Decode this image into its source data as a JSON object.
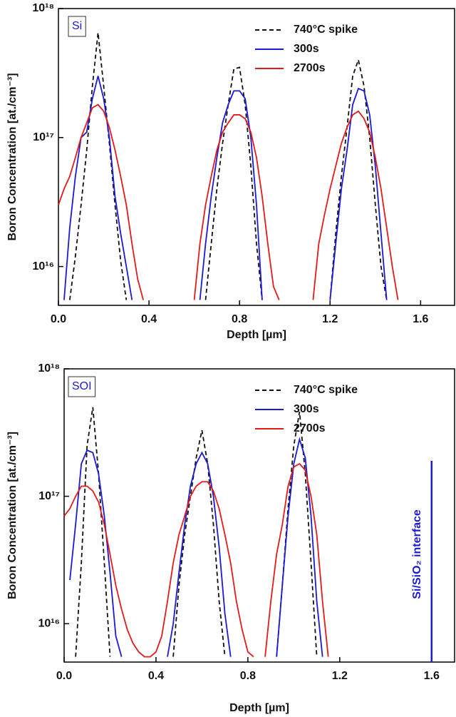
{
  "chart_data": [
    {
      "type": "line",
      "yscale": "log",
      "x_label": "Depth [µm]",
      "y_label": "Boron Concentration [at./cm⁻³]",
      "annotation": "Si",
      "xlim": [
        0,
        1.75
      ],
      "ylim": [
        5000000000000000.0,
        1e+18
      ],
      "xticks": [
        {
          "value": 0,
          "label": "0.0"
        },
        0.4,
        0.8,
        1.2,
        1.6
      ],
      "yticks": [
        {
          "value": 1e+16,
          "label": "10¹⁶"
        },
        {
          "value": 1e+17,
          "label": "10¹⁷"
        },
        {
          "value": 1e+18,
          "label": "10¹⁸"
        }
      ],
      "x": [
        0,
        0.025,
        0.05,
        0.075,
        0.1,
        0.125,
        0.15,
        0.175,
        0.2,
        0.225,
        0.25,
        0.275,
        0.3,
        0.325,
        0.35,
        0.375,
        0.4,
        0.425,
        0.45,
        0.475,
        0.5,
        0.525,
        0.55,
        0.575,
        0.6,
        0.625,
        0.65,
        0.675,
        0.7,
        0.725,
        0.75,
        0.775,
        0.8,
        0.825,
        0.85,
        0.875,
        0.9,
        0.925,
        0.95,
        0.975,
        1.0,
        1.025,
        1.05,
        1.075,
        1.1,
        1.125,
        1.15,
        1.175,
        1.2,
        1.225,
        1.25,
        1.275,
        1.3,
        1.325,
        1.35,
        1.375,
        1.4,
        1.425,
        1.45,
        1.475,
        1.5
      ],
      "series": [
        {
          "name": "740°C spike",
          "color": "#111111",
          "style": "dashed",
          "values": [
            null,
            null,
            5500000000000000.0,
            1.2e+16,
            3e+16,
            8e+16,
            2.5e+17,
            6.5e+17,
            2.5e+17,
            9e+16,
            3e+16,
            1.1e+16,
            5500000000000000.0,
            null,
            null,
            null,
            null,
            null,
            null,
            null,
            null,
            null,
            null,
            null,
            null,
            null,
            5500000000000000.0,
            1.5e+16,
            4e+16,
            9e+16,
            1.8e+17,
            3.4e+17,
            3.5e+17,
            1.8e+17,
            6e+16,
            1.5e+16,
            5500000000000000.0,
            null,
            null,
            null,
            null,
            null,
            null,
            null,
            null,
            null,
            null,
            null,
            5500000000000000.0,
            1.8e+16,
            5e+16,
            1.2e+17,
            3e+17,
            4e+17,
            2.5e+17,
            1e+17,
            3e+16,
            1e+16,
            5500000000000000.0,
            null,
            null
          ]
        },
        {
          "name": "300s",
          "color": "#1a1ad6",
          "style": "solid",
          "values": [
            null,
            5500000000000000.0,
            2e+16,
            5e+16,
            1e+17,
            1.1e+17,
            2e+17,
            3e+17,
            2e+17,
            1e+17,
            3.5e+16,
            1.8e+16,
            1e+16,
            5500000000000000.0,
            null,
            null,
            null,
            null,
            null,
            null,
            null,
            null,
            null,
            null,
            null,
            5500000000000000.0,
            1.5e+16,
            3.5e+16,
            7e+16,
            1.3e+17,
            1.8e+17,
            2.3e+17,
            2.3e+17,
            2e+17,
            1e+17,
            3e+16,
            5500000000000000.0,
            null,
            null,
            null,
            null,
            null,
            null,
            null,
            null,
            null,
            null,
            null,
            5500000000000000.0,
            1.5e+16,
            4e+16,
            8e+16,
            1.8e+17,
            2.4e+17,
            2.3e+17,
            1.5e+17,
            6e+16,
            1.8e+16,
            5500000000000000.0,
            null,
            null
          ]
        },
        {
          "name": "2700s",
          "color": "#e41a1a",
          "style": "solid",
          "values": [
            3e+16,
            4e+16,
            5e+16,
            7e+16,
            1e+17,
            1.3e+17,
            1.7e+17,
            1.8e+17,
            1.6e+17,
            1.2e+17,
            8e+16,
            5e+16,
            3e+16,
            1.5e+16,
            8000000000000000.0,
            5500000000000000.0,
            null,
            null,
            null,
            null,
            null,
            null,
            null,
            null,
            5500000000000000.0,
            1.5e+16,
            3e+16,
            5e+16,
            8e+16,
            1.1e+17,
            1.3e+17,
            1.5e+17,
            1.5e+17,
            1.4e+17,
            1.1e+17,
            7e+16,
            3.5e+16,
            1.5e+16,
            7000000000000000.0,
            5500000000000000.0,
            null,
            null,
            null,
            null,
            null,
            5500000000000000.0,
            1.5e+16,
            2.5e+16,
            4e+16,
            6e+16,
            9e+16,
            1.2e+17,
            1.5e+17,
            1.6e+17,
            1.4e+17,
            1.1e+17,
            7e+16,
            4e+16,
            2e+16,
            1e+16,
            5500000000000000.0
          ]
        }
      ]
    },
    {
      "type": "line",
      "yscale": "log",
      "x_label": "Depth [µm]",
      "y_label": "Boron Concentration [at./cm⁻³]",
      "annotation": "SOI",
      "interface": {
        "x": 1.6,
        "y": 1.9e+17,
        "label": "Si/SiO₂ interface",
        "color": "#1a1ad6"
      },
      "xlim": [
        0,
        1.7
      ],
      "ylim": [
        5000000000000000.0,
        1e+18
      ],
      "xticks": [
        {
          "value": 0,
          "label": "0.0"
        },
        0.4,
        0.8,
        1.2,
        1.6
      ],
      "yticks": [
        {
          "value": 1e+16,
          "label": "10¹⁶"
        },
        {
          "value": 1e+17,
          "label": "10¹⁷"
        },
        {
          "value": 1e+18,
          "label": "10¹⁸"
        }
      ],
      "x": [
        0,
        0.025,
        0.05,
        0.075,
        0.1,
        0.125,
        0.15,
        0.175,
        0.2,
        0.225,
        0.25,
        0.275,
        0.3,
        0.325,
        0.35,
        0.375,
        0.4,
        0.425,
        0.45,
        0.475,
        0.5,
        0.525,
        0.55,
        0.575,
        0.6,
        0.625,
        0.65,
        0.675,
        0.7,
        0.725,
        0.75,
        0.775,
        0.8,
        0.825,
        0.85,
        0.875,
        0.9,
        0.925,
        0.95,
        0.975,
        1.0,
        1.025,
        1.05,
        1.075,
        1.1,
        1.125,
        1.15
      ],
      "series": [
        {
          "name": "740°C spike",
          "color": "#111111",
          "style": "dashed",
          "values": [
            null,
            null,
            5500000000000000.0,
            3e+16,
            2.5e+17,
            5e+17,
            1.5e+17,
            3e+16,
            5500000000000000.0,
            null,
            null,
            null,
            null,
            null,
            null,
            null,
            null,
            null,
            null,
            5500000000000000.0,
            2e+16,
            5e+16,
            1e+17,
            2e+17,
            3.3e+17,
            1.8e+17,
            6e+16,
            1.5e+16,
            5500000000000000.0,
            null,
            null,
            null,
            null,
            null,
            null,
            null,
            null,
            5500000000000000.0,
            2e+16,
            8e+16,
            2.5e+17,
            4.6e+17,
            1.5e+17,
            3e+16,
            5500000000000000.0,
            null,
            null
          ]
        },
        {
          "name": "300s",
          "color": "#1a1ad6",
          "style": "solid",
          "values": [
            null,
            2.2e+16,
            6e+16,
            1.8e+17,
            2.3e+17,
            2.2e+17,
            1.5e+17,
            7e+16,
            2.5e+16,
            8000000000000000.0,
            5500000000000000.0,
            null,
            null,
            null,
            null,
            null,
            null,
            null,
            5500000000000000.0,
            1e+16,
            2.5e+16,
            6e+16,
            1.2e+17,
            1.8e+17,
            2.2e+17,
            1.8e+17,
            1e+17,
            4e+16,
            1.2e+16,
            5500000000000000.0,
            null,
            null,
            null,
            null,
            null,
            null,
            null,
            5500000000000000.0,
            2e+16,
            7e+16,
            1.8e+17,
            2.8e+17,
            2e+17,
            7e+16,
            1.5e+16,
            5500000000000000.0,
            null
          ]
        },
        {
          "name": "2700s",
          "color": "#e41a1a",
          "style": "solid",
          "values": [
            7e+16,
            8e+16,
            1e+17,
            1.2e+17,
            1.2e+17,
            1.1e+17,
            9e+16,
            6e+16,
            3.5e+16,
            2e+16,
            1.3e+16,
            9000000000000000.0,
            7000000000000000.0,
            6000000000000000.0,
            5500000000000000.0,
            5500000000000000.0,
            6000000000000000.0,
            8000000000000000.0,
            1.5e+16,
            3e+16,
            5e+16,
            7e+16,
            1e+17,
            1.2e+17,
            1.3e+17,
            1.3e+17,
            1.1e+17,
            8e+16,
            5e+16,
            3e+16,
            1.5e+16,
            9000000000000000.0,
            6000000000000000.0,
            5500000000000000.0,
            null,
            5500000000000000.0,
            1.5e+16,
            3.5e+16,
            6e+16,
            1.2e+17,
            1.7e+17,
            1.8e+17,
            1.6e+17,
            1e+17,
            5e+16,
            1.5e+16,
            5500000000000000.0
          ]
        }
      ]
    }
  ]
}
